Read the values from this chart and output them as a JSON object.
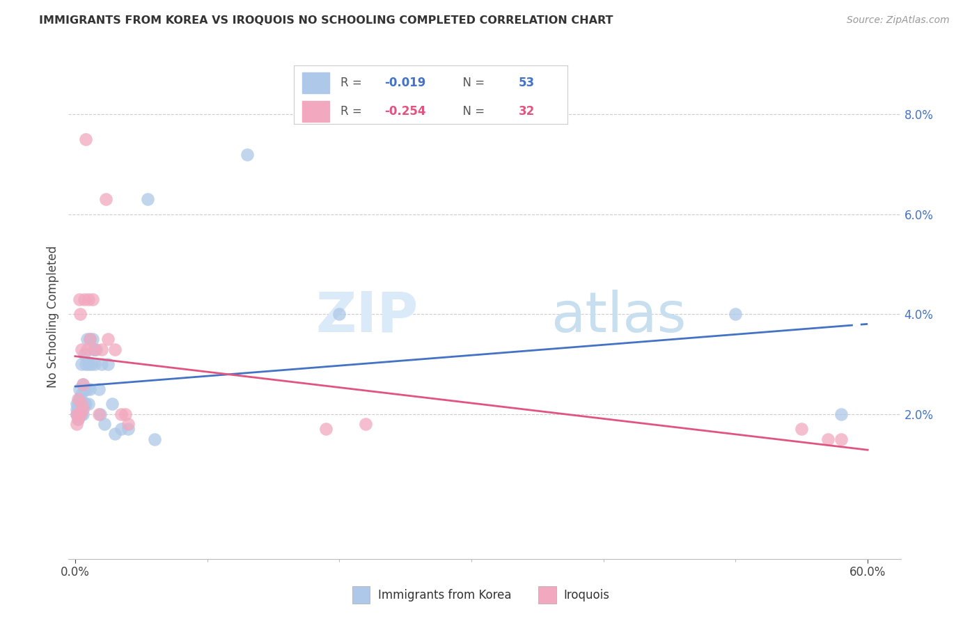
{
  "title": "IMMIGRANTS FROM KOREA VS IROQUOIS NO SCHOOLING COMPLETED CORRELATION CHART",
  "source": "Source: ZipAtlas.com",
  "ylabel": "No Schooling Completed",
  "legend_label_1": "Immigrants from Korea",
  "legend_label_2": "Iroquois",
  "r1": -0.019,
  "n1": 53,
  "r2": -0.254,
  "n2": 32,
  "color1": "#adc8e8",
  "color2": "#f2a8be",
  "line_color1": "#4472c4",
  "line_color2": "#e05580",
  "text_color": "#4472c4",
  "xlim": [
    -0.005,
    0.625
  ],
  "ylim": [
    -0.009,
    0.088
  ],
  "xticks": [
    0.0,
    0.6
  ],
  "yticks": [
    0.02,
    0.04,
    0.06,
    0.08
  ],
  "background_color": "#ffffff",
  "watermark_zip": "ZIP",
  "watermark_atlas": "atlas",
  "scatter1_x": [
    0.001,
    0.001,
    0.001,
    0.002,
    0.002,
    0.002,
    0.002,
    0.003,
    0.003,
    0.003,
    0.003,
    0.003,
    0.004,
    0.004,
    0.004,
    0.005,
    0.005,
    0.005,
    0.005,
    0.006,
    0.006,
    0.006,
    0.007,
    0.007,
    0.007,
    0.008,
    0.008,
    0.009,
    0.009,
    0.01,
    0.01,
    0.011,
    0.011,
    0.012,
    0.013,
    0.014,
    0.015,
    0.016,
    0.018,
    0.019,
    0.02,
    0.022,
    0.025,
    0.028,
    0.03,
    0.035,
    0.04,
    0.055,
    0.06,
    0.13,
    0.5,
    0.58,
    0.2
  ],
  "scatter1_y": [
    0.022,
    0.021,
    0.02,
    0.022,
    0.021,
    0.02,
    0.019,
    0.025,
    0.023,
    0.022,
    0.021,
    0.02,
    0.023,
    0.022,
    0.021,
    0.03,
    0.024,
    0.022,
    0.02,
    0.026,
    0.022,
    0.02,
    0.032,
    0.025,
    0.022,
    0.03,
    0.022,
    0.035,
    0.025,
    0.03,
    0.022,
    0.035,
    0.025,
    0.03,
    0.035,
    0.033,
    0.03,
    0.033,
    0.025,
    0.02,
    0.03,
    0.018,
    0.03,
    0.022,
    0.016,
    0.017,
    0.017,
    0.063,
    0.015,
    0.072,
    0.04,
    0.02,
    0.04
  ],
  "scatter2_x": [
    0.001,
    0.001,
    0.002,
    0.002,
    0.003,
    0.003,
    0.004,
    0.004,
    0.005,
    0.005,
    0.006,
    0.006,
    0.007,
    0.008,
    0.009,
    0.01,
    0.011,
    0.013,
    0.015,
    0.018,
    0.02,
    0.023,
    0.025,
    0.03,
    0.035,
    0.038,
    0.04,
    0.19,
    0.22,
    0.55,
    0.57,
    0.58
  ],
  "scatter2_y": [
    0.02,
    0.018,
    0.023,
    0.019,
    0.043,
    0.02,
    0.04,
    0.02,
    0.033,
    0.022,
    0.026,
    0.021,
    0.043,
    0.075,
    0.033,
    0.043,
    0.035,
    0.043,
    0.033,
    0.02,
    0.033,
    0.063,
    0.035,
    0.033,
    0.02,
    0.02,
    0.018,
    0.017,
    0.018,
    0.017,
    0.015,
    0.015
  ]
}
